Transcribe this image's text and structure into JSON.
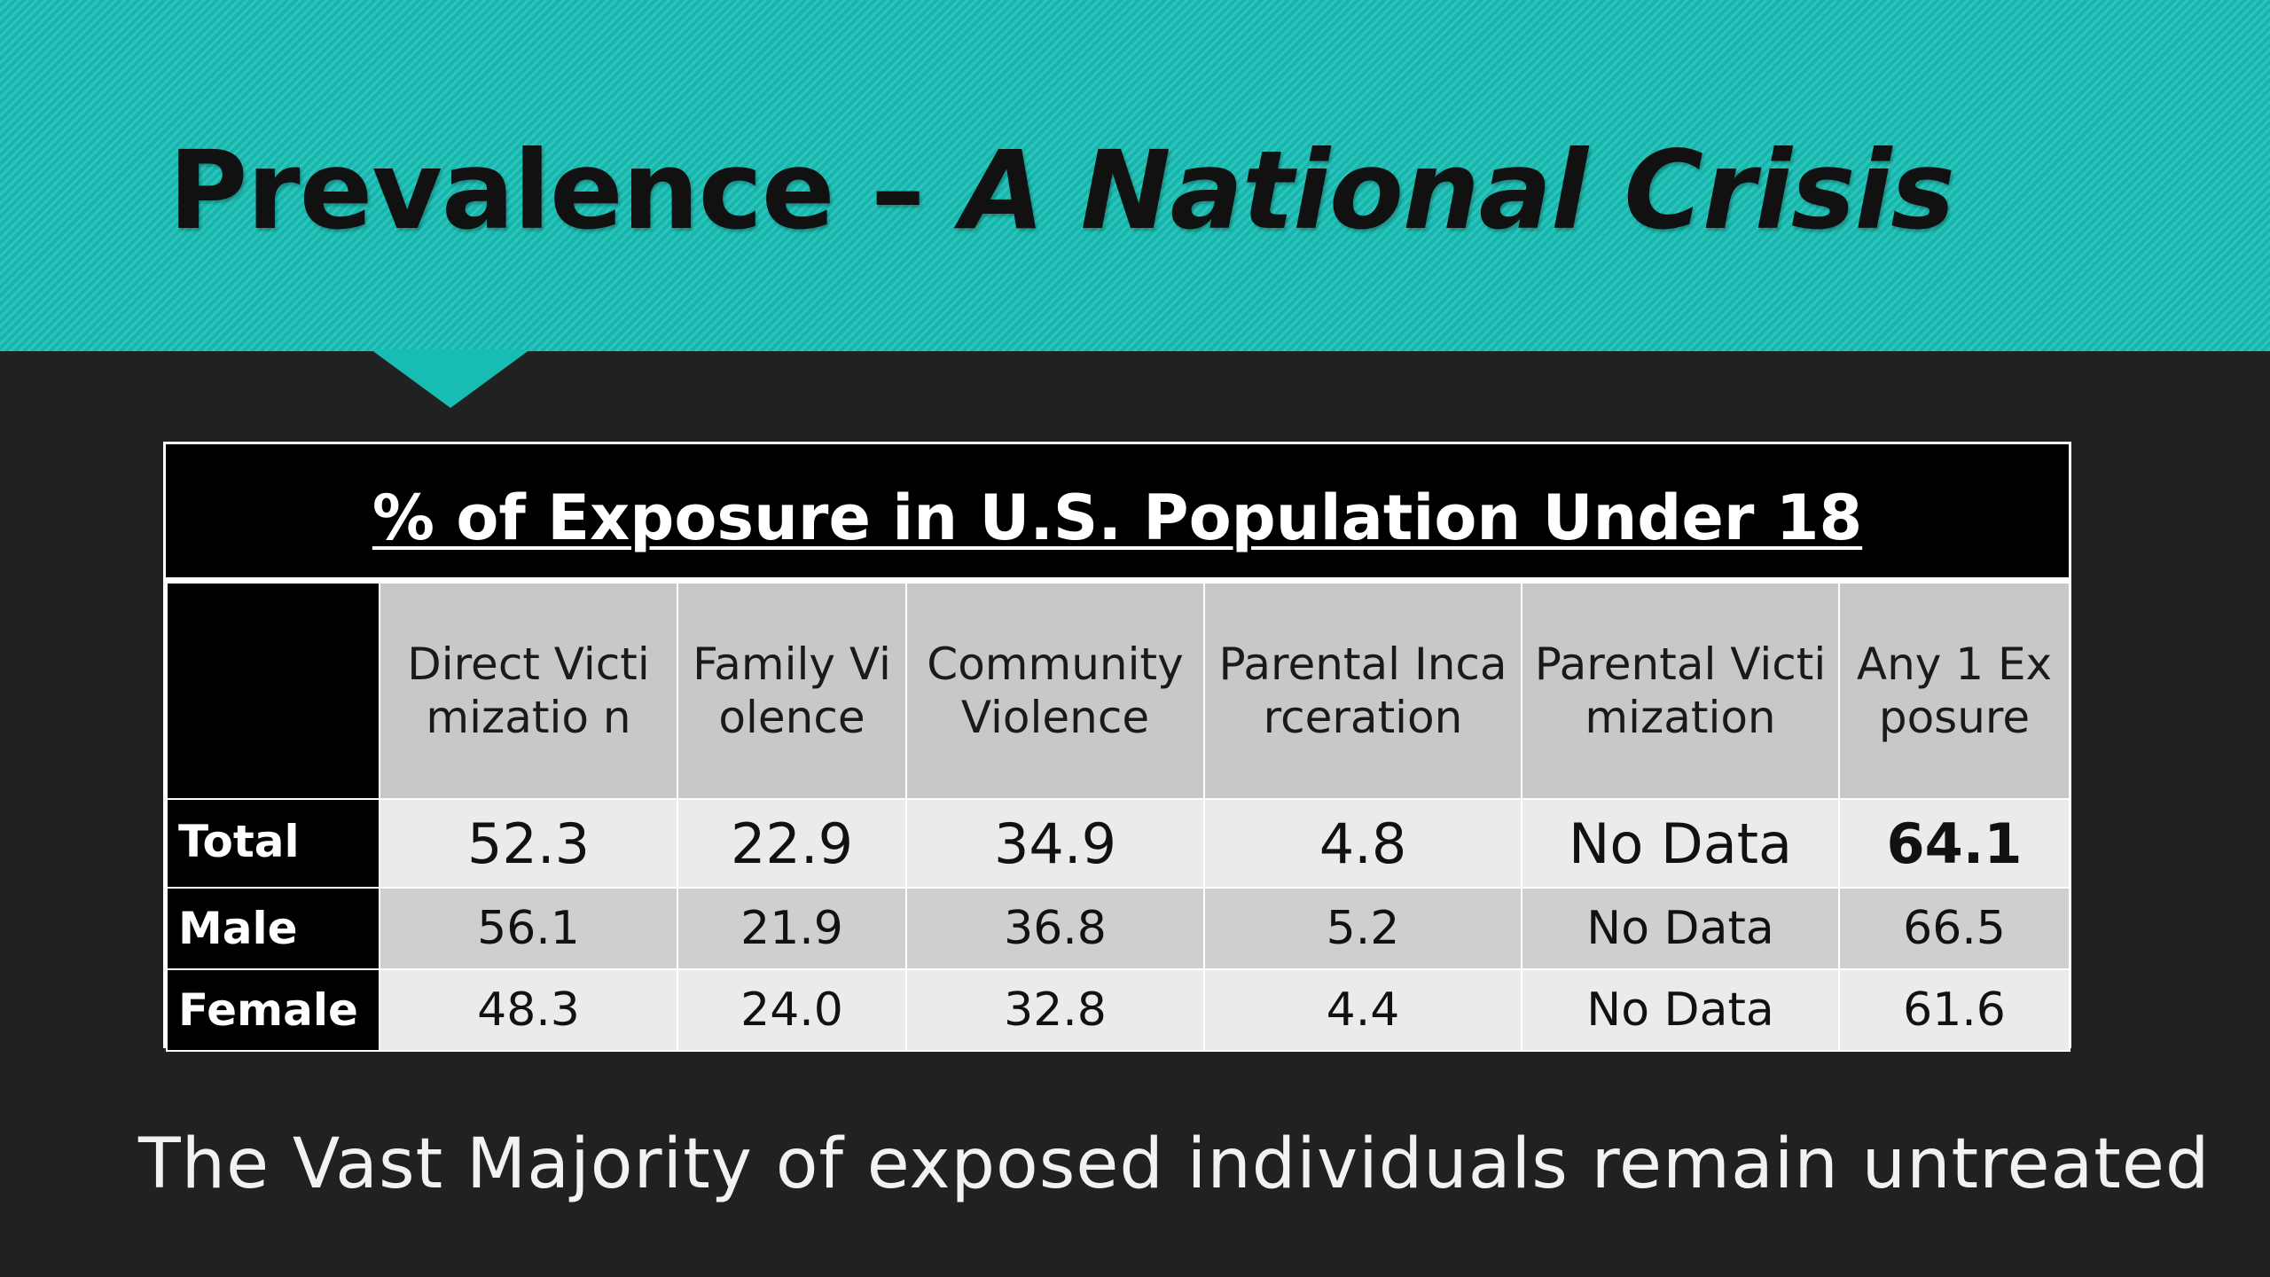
{
  "slide": {
    "title_plain": "Prevalence – ",
    "title_emphasis": "A National Crisis",
    "footer": "The Vast Majority of exposed individuals remain untreated",
    "accent_color": "#17bdb3",
    "background_color": "#212121"
  },
  "table": {
    "caption": "% of Exposure in U.S. Population Under 18",
    "columns": [
      "Direct Victimizatio n",
      "Family Violence",
      "Community Violence",
      "Parental Incarceration",
      "Parental Victimization",
      "Any 1 Exposure"
    ],
    "rows": [
      {
        "label": "Total",
        "values": [
          "52.3",
          "22.9",
          "34.9",
          "4.8",
          "No Data",
          "64.1"
        ]
      },
      {
        "label": "Male",
        "values": [
          "56.1",
          "21.9",
          "36.8",
          "5.2",
          "No Data",
          "66.5"
        ]
      },
      {
        "label": "Female",
        "values": [
          "48.3",
          "24.0",
          "32.8",
          "4.4",
          "No Data",
          "61.6"
        ]
      }
    ]
  }
}
